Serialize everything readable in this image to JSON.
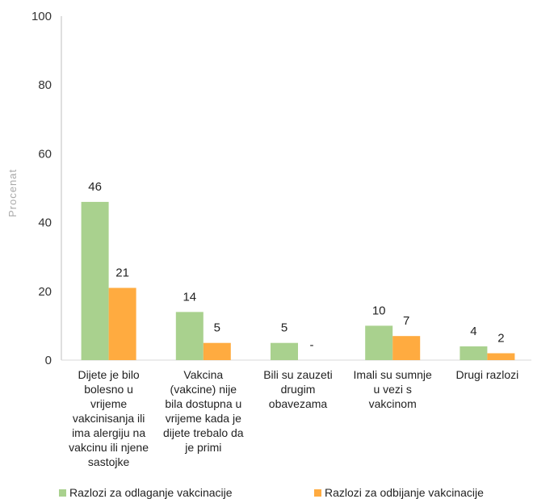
{
  "chart_data": {
    "type": "bar",
    "ylabel": "Procenat",
    "ylim": [
      0,
      100
    ],
    "yticks": [
      0,
      20,
      40,
      60,
      80,
      100
    ],
    "grid": false,
    "legend_position": "bottom",
    "categories": [
      "Dijete je bilo bolesno u vrijeme vakcinisanja ili ima alergiju na vakcinu ili njene sastojke",
      "Vakcina (vakcine) nije bila dostupna u vrijeme kada je dijete trebalo da je primi",
      "Bili su zauzeti drugim obavezama",
      "Imali su sumnje u vezi s vakcinom",
      "Drugi razlozi"
    ],
    "category_lines": [
      [
        "Dijete je bilo",
        "bolesno u",
        "vrijeme",
        "vakcinisanja ili",
        "ima alergiju na",
        "vakcinu ili njene",
        "sastojke"
      ],
      [
        "Vakcina",
        "(vakcine) nije",
        "bila dostupna u",
        "vrijeme kada je",
        "dijete trebalo da",
        "je primi"
      ],
      [
        "Bili su zauzeti",
        "drugim",
        "obavezama"
      ],
      [
        "Imali su sumnje",
        "u vezi s",
        "vakcinom"
      ],
      [
        "Drugi razlozi"
      ]
    ],
    "series": [
      {
        "name": "Razlozi za odlaganje vakcinacije",
        "color": "#a9d18e",
        "values": [
          46,
          14,
          5,
          10,
          4
        ],
        "labels": [
          "46",
          "14",
          "5",
          "10",
          "4"
        ]
      },
      {
        "name": "Razlozi za odbijanje vakcinacije",
        "color": "#ffab40",
        "values": [
          21,
          5,
          0,
          7,
          2
        ],
        "labels": [
          "21",
          "5",
          "-",
          "7",
          "2"
        ]
      }
    ]
  }
}
